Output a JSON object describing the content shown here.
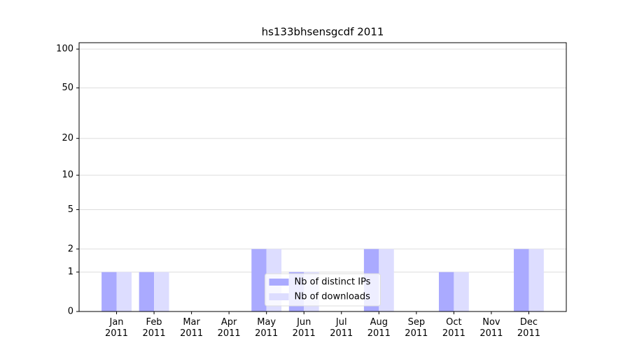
{
  "chart_data": {
    "type": "bar",
    "title": "hs133bhsensgcdf 2011",
    "categories": [
      "Jan\n2011",
      "Feb\n2011",
      "Mar\n2011",
      "Apr\n2011",
      "May\n2011",
      "Jun\n2011",
      "Jul\n2011",
      "Aug\n2011",
      "Sep\n2011",
      "Oct\n2011",
      "Nov\n2011",
      "Dec\n2011"
    ],
    "series": [
      {
        "name": "Nb of distinct IPs",
        "color": "#aaaaff",
        "values": [
          1,
          1,
          0,
          0,
          2,
          1,
          0,
          2,
          0,
          1,
          0,
          2
        ]
      },
      {
        "name": "Nb of downloads",
        "color": "#ddddff",
        "values": [
          1,
          1,
          0,
          0,
          2,
          1,
          0,
          2,
          0,
          1,
          0,
          2
        ]
      }
    ],
    "yscale": "log1p",
    "ylim": [
      0,
      112
    ],
    "yticks": [
      0,
      1,
      2,
      5,
      10,
      20,
      50,
      100
    ],
    "grid": true,
    "legend": "lower center"
  }
}
